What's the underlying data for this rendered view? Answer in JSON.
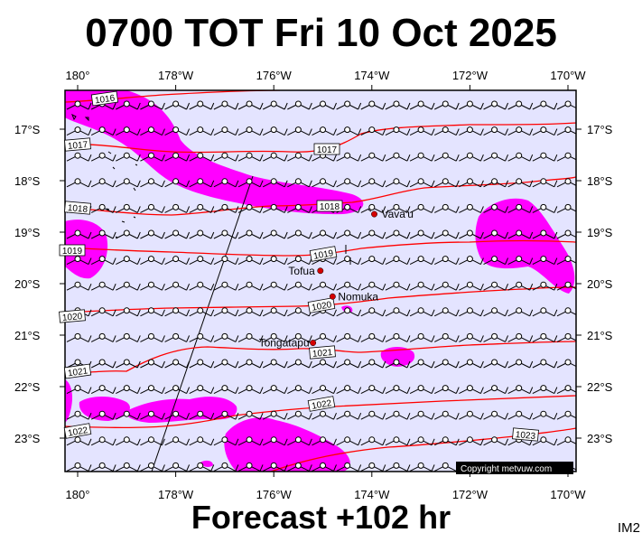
{
  "title": "0700 TOT Fri 10 Oct 2025",
  "subtitle": "Forecast +102 hr",
  "badge": "IM2",
  "copyright": "Copyright metvuw.com",
  "colors": {
    "ocean": "#e4e4ff",
    "rain": "#ff00ff",
    "isobar": "#ff0000",
    "land_marker": "#d40000"
  },
  "lon_labels": [
    "180°",
    "178°W",
    "176°W",
    "174°W",
    "172°W",
    "170°W"
  ],
  "lat_labels": [
    "17°S",
    "18°S",
    "19°S",
    "20°S",
    "21°S",
    "22°S",
    "23°S"
  ],
  "isobar_labels": [
    "1016",
    "1017",
    "1017",
    "1018",
    "1018",
    "1019",
    "1019",
    "1020",
    "1020",
    "1021",
    "1021",
    "1022",
    "1022",
    "1023"
  ],
  "places": [
    {
      "name": "Vava'u",
      "lon": -173.95,
      "lat": -18.65
    },
    {
      "name": "Tofua",
      "lon": -175.05,
      "lat": -19.75
    },
    {
      "name": "Nomuka",
      "lon": -174.8,
      "lat": -20.25
    },
    {
      "name": "Tongatapu",
      "lon": -175.2,
      "lat": -21.15
    }
  ],
  "wind_barbs": "light south-easterly barbs across the domain"
}
